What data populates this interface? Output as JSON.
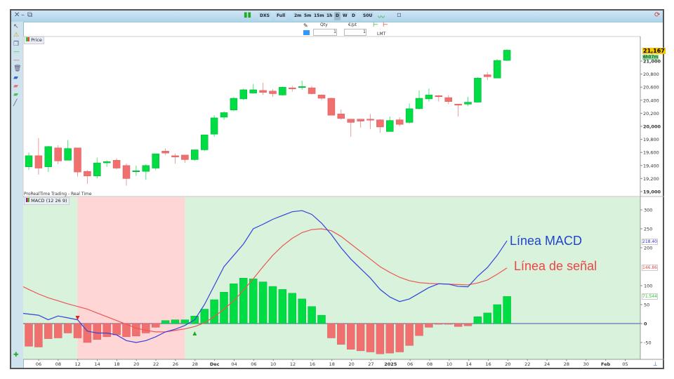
{
  "toolbar": {
    "instrument": "DXS",
    "period_mode": "Full",
    "timeframes": [
      "2m",
      "5m",
      "15m",
      "1h",
      "D",
      "W"
    ],
    "selected_timeframe": "D",
    "interval_dropdown": "D",
    "units_dropdown": "S0U"
  },
  "order_panel": {
    "qty_label": "Qty",
    "qty_value": "1",
    "eur_label": "€/pt",
    "eur_value": "1",
    "order_type": "LMT"
  },
  "price_panel": {
    "legend": "Price",
    "current_price": "21,167",
    "countdown": "6h07m",
    "y_ticks": [
      "19,000",
      "19,200",
      "19,400",
      "19,600",
      "19,800",
      "20,000",
      "20,200",
      "20,400",
      "20,600",
      "20,800",
      "21,000"
    ],
    "y_values": [
      19000,
      19200,
      19400,
      19600,
      19800,
      20000,
      20200,
      20400,
      20600,
      20800,
      21000
    ],
    "colors": {
      "up": "#00dd44",
      "down": "#f07070"
    }
  },
  "source_label": "ProRealTime Trading - Real Time",
  "macd_panel": {
    "legend": "MACD (12 26 9)",
    "y_ticks": [
      "-50",
      "0",
      "50",
      "100",
      "200",
      "250",
      "300"
    ],
    "y_values": [
      -50,
      0,
      50,
      100,
      200,
      250,
      300
    ],
    "macd_value": "218.40",
    "signal_value": "146.86",
    "histogram_value": "71.544",
    "annotation_macd": "Línea MACD",
    "annotation_signal": "Línea de señal",
    "colors": {
      "macd": "#3344dd",
      "signal": "#ee5555",
      "hist_up": "#00dd44",
      "hist_down": "#f07070",
      "zone_bull": "#d8f2dc",
      "zone_bear": "#ffd6d6"
    }
  },
  "x_axis": [
    "06",
    "08",
    "12",
    "14",
    "18",
    "20",
    "22",
    "26",
    "28",
    "Dec",
    "04",
    "06",
    "10",
    "12",
    "16",
    "18",
    "20",
    "27",
    "2025",
    "06",
    "08",
    "10",
    "14",
    "16",
    "20",
    "22",
    "24",
    "28",
    "30",
    "Feb",
    "05"
  ],
  "chart_data": [
    {
      "type": "candlestick",
      "title": "Price",
      "ylim": [
        19000,
        21200
      ],
      "ohlc": [
        [
          19380,
          19600,
          19330,
          19550
        ],
        [
          19550,
          19820,
          19260,
          19360
        ],
        [
          19380,
          19700,
          19300,
          19690
        ],
        [
          19670,
          19710,
          19420,
          19470
        ],
        [
          19480,
          19790,
          19480,
          19660
        ],
        [
          19670,
          19670,
          19230,
          19300
        ],
        [
          19310,
          19330,
          19120,
          19240
        ],
        [
          19240,
          19520,
          19200,
          19440
        ],
        [
          19440,
          19480,
          19380,
          19460
        ],
        [
          19480,
          19510,
          19340,
          19360
        ],
        [
          19400,
          19430,
          19090,
          19200
        ],
        [
          19320,
          19400,
          19240,
          19320
        ],
        [
          19310,
          19420,
          19180,
          19400
        ],
        [
          19360,
          19580,
          19330,
          19580
        ],
        [
          19620,
          19660,
          19560,
          19590
        ],
        [
          19550,
          19580,
          19430,
          19530
        ],
        [
          19560,
          19560,
          19440,
          19490
        ],
        [
          19490,
          19640,
          19470,
          19640
        ],
        [
          19640,
          19870,
          19620,
          19870
        ],
        [
          19880,
          20170,
          19840,
          20130
        ],
        [
          20140,
          20230,
          20100,
          20210
        ],
        [
          20250,
          20450,
          20230,
          20430
        ],
        [
          20420,
          20580,
          20400,
          20560
        ],
        [
          20510,
          20650,
          20500,
          20560
        ],
        [
          20550,
          20670,
          20480,
          20520
        ],
        [
          20540,
          20570,
          20450,
          20500
        ],
        [
          20480,
          20610,
          20470,
          20600
        ],
        [
          20590,
          20620,
          20530,
          20580
        ],
        [
          20600,
          20700,
          20560,
          20610
        ],
        [
          20590,
          20620,
          20490,
          20500
        ],
        [
          20480,
          20490,
          20400,
          20430
        ],
        [
          20430,
          20440,
          20170,
          20170
        ],
        [
          20190,
          20260,
          20100,
          20120
        ],
        [
          20110,
          20110,
          19840,
          20060
        ],
        [
          20110,
          20110,
          19980,
          20080
        ],
        [
          20110,
          20190,
          19960,
          20100
        ],
        [
          20100,
          20110,
          19900,
          19990
        ],
        [
          19920,
          20150,
          19920,
          20090
        ],
        [
          20100,
          20140,
          20000,
          20030
        ],
        [
          20060,
          20350,
          20040,
          20270
        ],
        [
          20270,
          20550,
          20260,
          20430
        ],
        [
          20420,
          20580,
          20380,
          20480
        ],
        [
          20470,
          20480,
          20380,
          20460
        ],
        [
          20440,
          20480,
          20340,
          20380
        ],
        [
          20340,
          20340,
          20150,
          20330
        ],
        [
          20340,
          20450,
          20310,
          20370
        ],
        [
          20370,
          20750,
          20370,
          20740
        ],
        [
          20790,
          20830,
          20710,
          20760
        ],
        [
          20740,
          21030,
          20740,
          21010
        ],
        [
          21010,
          21180,
          21000,
          21167
        ]
      ]
    },
    {
      "type": "line",
      "title": "MACD (12 26 9)",
      "ylim": [
        -80,
        330
      ],
      "series": [
        {
          "name": "Línea MACD",
          "values": [
            25,
            22,
            10,
            20,
            15,
            10,
            -20,
            -25,
            -25,
            -30,
            -45,
            -50,
            -45,
            -35,
            -22,
            -15,
            -5,
            10,
            50,
            100,
            150,
            180,
            210,
            250,
            262,
            275,
            285,
            295,
            298,
            288,
            265,
            235,
            200,
            170,
            145,
            120,
            90,
            70,
            58,
            65,
            80,
            95,
            105,
            104,
            98,
            97,
            125,
            148,
            180,
            218.4
          ]
        },
        {
          "name": "Línea de señal",
          "values": [
            90,
            78,
            68,
            60,
            52,
            45,
            38,
            28,
            18,
            8,
            -2,
            -12,
            -18,
            -22,
            -22,
            -18,
            -14,
            -8,
            2,
            18,
            38,
            60,
            88,
            118,
            150,
            180,
            205,
            225,
            240,
            248,
            250,
            245,
            230,
            210,
            190,
            170,
            150,
            135,
            122,
            113,
            108,
            106,
            105,
            104,
            103,
            102,
            107,
            115,
            130,
            146.86
          ]
        },
        {
          "values": [
            -60,
            -62,
            -40,
            -38,
            -25,
            -38,
            -50,
            -42,
            -35,
            -30,
            -35,
            -33,
            -25,
            -10,
            8,
            10,
            10,
            20,
            38,
            63,
            83,
            105,
            120,
            118,
            110,
            98,
            90,
            80,
            65,
            45,
            22,
            -38,
            -55,
            -68,
            -72,
            -75,
            -80,
            -78,
            -75,
            -58,
            -32,
            -10,
            -2,
            -2,
            -8,
            -6,
            18,
            28,
            50,
            71.544
          ]
        }
      ],
      "zones": [
        {
          "from_bar": 0,
          "to_bar": 5,
          "state": "bull"
        },
        {
          "from_bar": 5,
          "to_bar": 16,
          "state": "bear"
        },
        {
          "from_bar": 16,
          "to_bar": 49,
          "state": "bull"
        }
      ],
      "signals": [
        {
          "bar": 5,
          "direction": "down"
        },
        {
          "bar": 17,
          "direction": "up"
        }
      ]
    }
  ]
}
